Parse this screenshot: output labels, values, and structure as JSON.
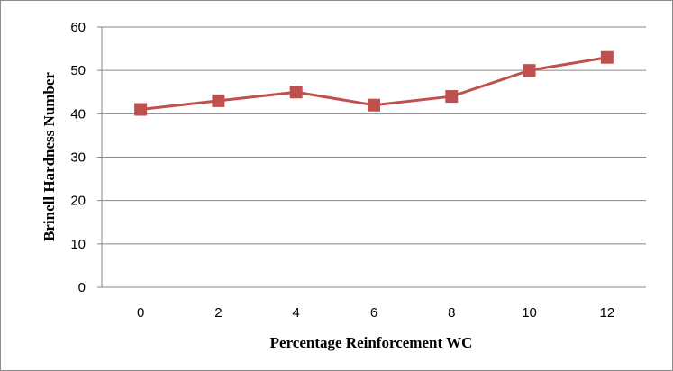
{
  "chart_data": {
    "type": "line",
    "x": [
      0,
      2,
      4,
      6,
      8,
      10,
      12
    ],
    "categories": [
      "0",
      "2",
      "4",
      "6",
      "8",
      "10",
      "12"
    ],
    "series": [
      {
        "values": [
          41,
          43,
          45,
          42,
          44,
          50,
          53
        ],
        "color": "#c0504d",
        "marker": "square"
      }
    ],
    "xlabel": "Percentage Reinforcement WC",
    "ylabel": "Brinell Hardness Number",
    "ylim": [
      0,
      60
    ],
    "yticks": [
      "0",
      "10",
      "20",
      "30",
      "40",
      "50",
      "60"
    ],
    "grid": true,
    "legend": "none"
  }
}
